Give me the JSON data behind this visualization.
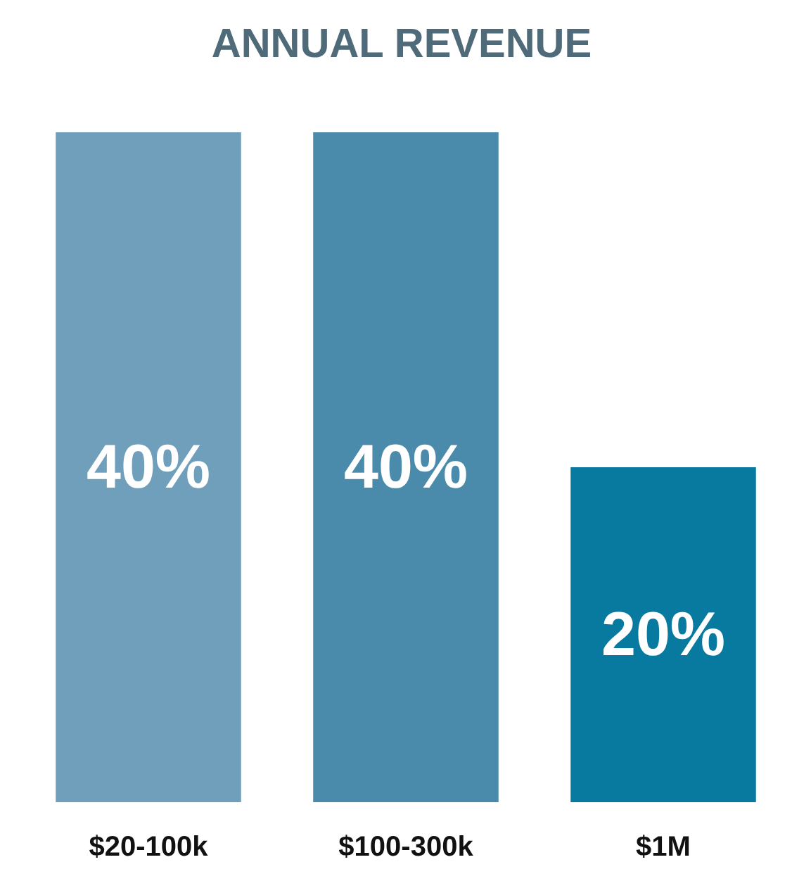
{
  "chart_data": {
    "type": "bar",
    "title": "ANNUAL REVENUE",
    "categories": [
      "$20-100k",
      "$100-300k",
      "$1M"
    ],
    "values": [
      40,
      40,
      20
    ],
    "colors": [
      "#6f9fbb",
      "#4a8aab",
      "#08799f"
    ],
    "value_labels": [
      "40%",
      "40%",
      "20%"
    ]
  }
}
